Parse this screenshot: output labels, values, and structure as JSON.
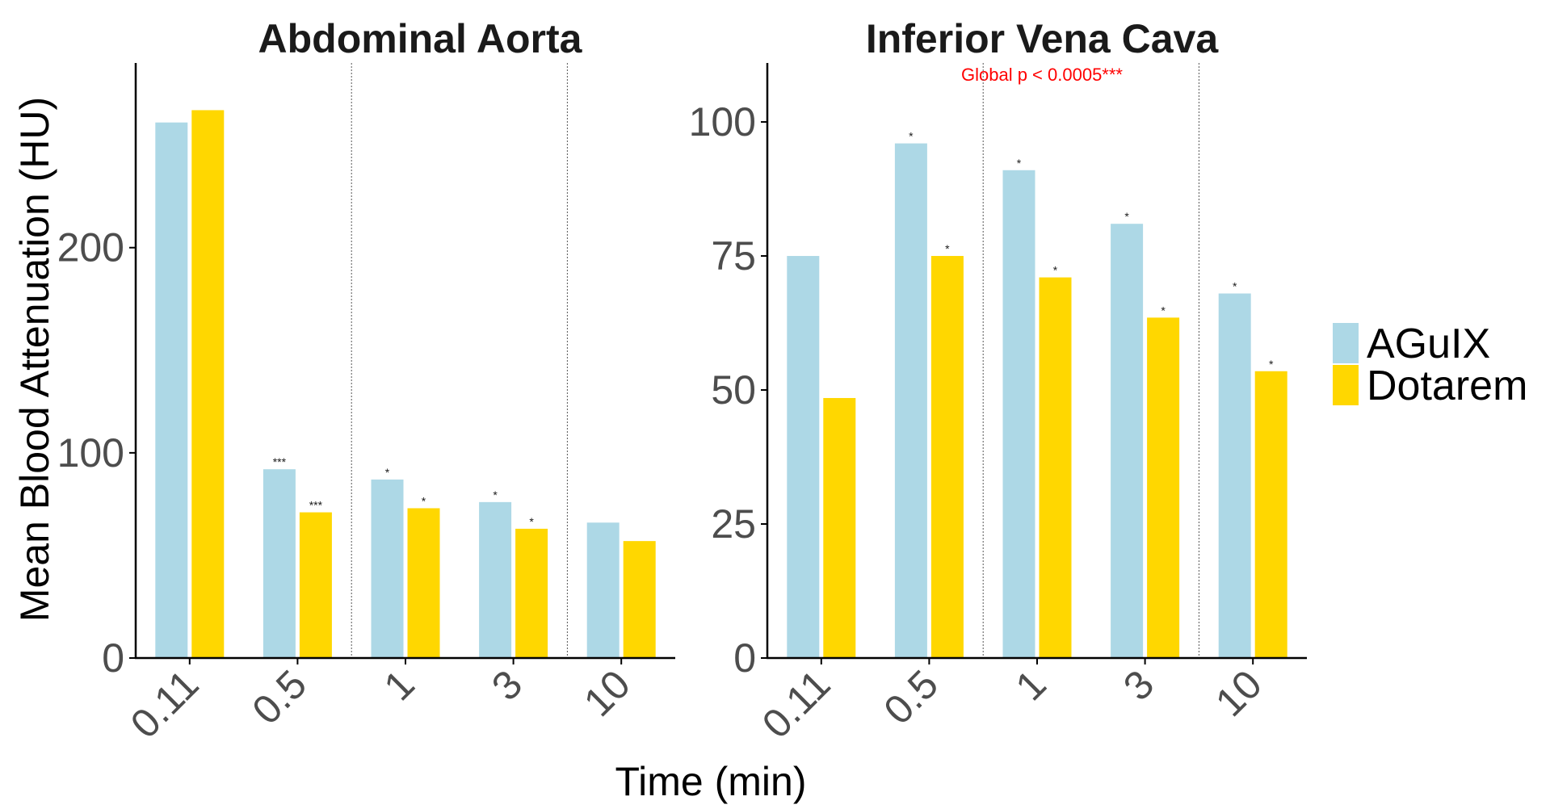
{
  "chart_data": {
    "type": "bar",
    "ylabel": "Mean Blood Attenuation (HU)",
    "xlabel": "Time (min)",
    "categories": [
      "0.11",
      "0.5",
      "1",
      "3",
      "10"
    ],
    "legend": {
      "position": "right",
      "entries": [
        {
          "name": "AGuIX",
          "color": "#ADD8E6"
        },
        {
          "name": "Dotarem",
          "color": "#FFD700"
        }
      ]
    },
    "panels": [
      {
        "title": "Abdominal Aorta",
        "ylim": [
          0,
          290
        ],
        "yticks": [
          0,
          100,
          200
        ],
        "annotation": "",
        "series": [
          {
            "name": "AGuIX",
            "values": [
              261,
              92,
              87,
              76,
              66
            ],
            "significance": [
              "",
              "***",
              "*",
              "*",
              ""
            ]
          },
          {
            "name": "Dotarem",
            "values": [
              267,
              71,
              73,
              63,
              57
            ],
            "significance": [
              "",
              "***",
              "*",
              "*",
              ""
            ]
          }
        ]
      },
      {
        "title": "Inferior Vena Cava",
        "ylim": [
          0,
          111
        ],
        "yticks": [
          0,
          25,
          50,
          75,
          100
        ],
        "annotation": "Global p < 0.0005***",
        "series": [
          {
            "name": "AGuIX",
            "values": [
              75,
              96,
              91,
              81,
              68
            ],
            "significance": [
              "",
              "*",
              "*",
              "*",
              "*"
            ]
          },
          {
            "name": "Dotarem",
            "values": [
              48.5,
              75,
              71,
              63.5,
              53.5
            ],
            "significance": [
              "",
              "*",
              "*",
              "*",
              "*"
            ]
          }
        ]
      }
    ],
    "colors": {
      "AGuIX": "#ADD8E6",
      "Dotarem": "#FFD700",
      "annotation": "#FF0000"
    }
  }
}
